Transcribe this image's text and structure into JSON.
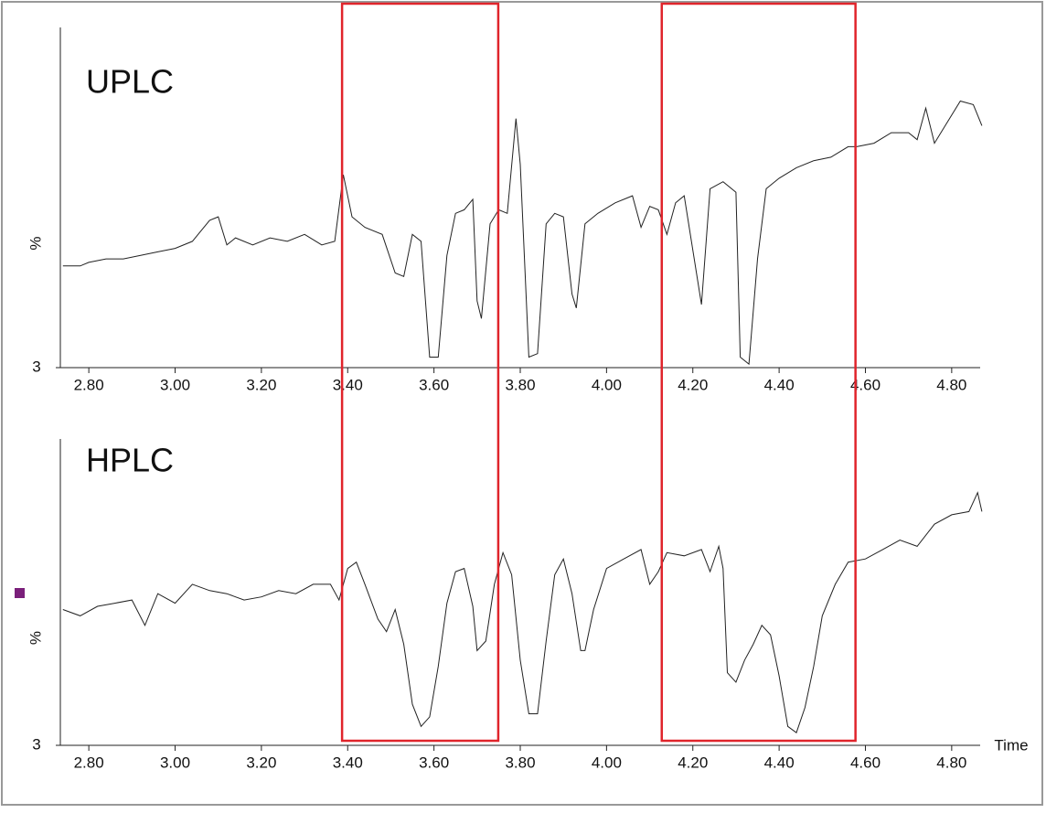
{
  "chart_data": [
    {
      "type": "line",
      "title": "UPLC",
      "ylabel": "%",
      "xlim": [
        2.734,
        4.866
      ],
      "xticks": [
        {
          "value": 2.8,
          "label": "2.80"
        },
        {
          "value": 3.0,
          "label": "3.00"
        },
        {
          "value": 3.2,
          "label": "3.20"
        },
        {
          "value": 3.4,
          "label": "3.40"
        },
        {
          "value": 3.6,
          "label": "3.60"
        },
        {
          "value": 3.8,
          "label": "3.80"
        },
        {
          "value": 4.0,
          "label": "4.00"
        },
        {
          "value": 4.2,
          "label": "4.20"
        },
        {
          "value": 4.4,
          "label": "4.40"
        },
        {
          "value": 4.6,
          "label": "4.60"
        },
        {
          "value": 4.8,
          "label": "4.80"
        }
      ],
      "ylim": [
        3,
        100
      ],
      "yticks": [
        3
      ],
      "x": [
        2.74,
        2.78,
        2.8,
        2.84,
        2.88,
        2.92,
        2.96,
        3.0,
        3.04,
        3.08,
        3.1,
        3.12,
        3.14,
        3.18,
        3.22,
        3.26,
        3.3,
        3.34,
        3.37,
        3.39,
        3.41,
        3.44,
        3.48,
        3.51,
        3.53,
        3.55,
        3.57,
        3.59,
        3.61,
        3.63,
        3.65,
        3.67,
        3.69,
        3.7,
        3.71,
        3.73,
        3.75,
        3.77,
        3.79,
        3.8,
        3.82,
        3.84,
        3.86,
        3.88,
        3.9,
        3.92,
        3.93,
        3.95,
        3.98,
        4.02,
        4.06,
        4.08,
        4.1,
        4.12,
        4.14,
        4.16,
        4.18,
        4.22,
        4.24,
        4.27,
        4.3,
        4.31,
        4.33,
        4.35,
        4.37,
        4.4,
        4.44,
        4.48,
        4.52,
        4.56,
        4.58,
        4.62,
        4.66,
        4.7,
        4.72,
        4.74,
        4.76,
        4.78,
        4.82,
        4.85,
        4.87
      ],
      "series": [
        {
          "color": "#222222",
          "values": [
            32,
            32,
            33,
            34,
            34,
            35,
            36,
            37,
            39,
            45,
            46,
            38,
            40,
            38,
            40,
            39,
            41,
            38,
            39,
            58,
            46,
            43,
            41,
            30,
            29,
            41,
            39,
            6,
            6,
            35,
            47,
            48,
            51,
            22,
            17,
            44,
            48,
            47,
            74,
            61,
            6,
            7,
            44,
            47,
            46,
            24,
            20,
            44,
            47,
            50,
            52,
            43,
            49,
            48,
            41,
            50,
            52,
            21,
            54,
            56,
            53,
            6,
            4,
            34,
            54,
            57,
            60,
            62,
            63,
            66,
            66,
            67,
            70,
            70,
            68,
            77,
            67,
            71,
            79,
            78,
            72
          ]
        }
      ]
    },
    {
      "type": "line",
      "title": "HPLC",
      "ylabel": "%",
      "xlabel": "Time",
      "xlim": [
        2.734,
        4.866
      ],
      "xticks": [
        {
          "value": 2.8,
          "label": "2.80"
        },
        {
          "value": 3.0,
          "label": "3.00"
        },
        {
          "value": 3.2,
          "label": "3.20"
        },
        {
          "value": 3.4,
          "label": "3.40"
        },
        {
          "value": 3.6,
          "label": "3.60"
        },
        {
          "value": 3.8,
          "label": "3.80"
        },
        {
          "value": 4.0,
          "label": "4.00"
        },
        {
          "value": 4.2,
          "label": "4.20"
        },
        {
          "value": 4.4,
          "label": "4.40"
        },
        {
          "value": 4.6,
          "label": "4.60"
        },
        {
          "value": 4.8,
          "label": "4.80"
        }
      ],
      "ylim": [
        3,
        100
      ],
      "yticks": [
        3
      ],
      "x": [
        2.74,
        2.78,
        2.82,
        2.86,
        2.9,
        2.93,
        2.96,
        3.0,
        3.04,
        3.08,
        3.12,
        3.16,
        3.2,
        3.24,
        3.28,
        3.32,
        3.36,
        3.38,
        3.4,
        3.42,
        3.44,
        3.47,
        3.49,
        3.51,
        3.53,
        3.55,
        3.57,
        3.59,
        3.61,
        3.63,
        3.65,
        3.67,
        3.69,
        3.7,
        3.72,
        3.74,
        3.76,
        3.78,
        3.8,
        3.82,
        3.84,
        3.86,
        3.88,
        3.9,
        3.92,
        3.94,
        3.95,
        3.97,
        4.0,
        4.04,
        4.08,
        4.1,
        4.12,
        4.14,
        4.18,
        4.22,
        4.24,
        4.26,
        4.27,
        4.28,
        4.3,
        4.32,
        4.34,
        4.36,
        4.38,
        4.4,
        4.42,
        4.44,
        4.46,
        4.48,
        4.5,
        4.53,
        4.56,
        4.6,
        4.64,
        4.68,
        4.72,
        4.76,
        4.8,
        4.84,
        4.86,
        4.87
      ],
      "series": [
        {
          "color": "#222222",
          "values": [
            46,
            44,
            47,
            48,
            49,
            41,
            51,
            48,
            54,
            52,
            51,
            49,
            50,
            52,
            51,
            54,
            54,
            49,
            59,
            61,
            54,
            43,
            39,
            46,
            35,
            16,
            9,
            12,
            28,
            48,
            58,
            59,
            47,
            33,
            36,
            54,
            64,
            57,
            30,
            13,
            13,
            36,
            57,
            62,
            51,
            33,
            33,
            46,
            59,
            62,
            65,
            54,
            58,
            64,
            63,
            65,
            58,
            66,
            59,
            26,
            23,
            30,
            35,
            41,
            38,
            25,
            9,
            7,
            15,
            28,
            44,
            54,
            61,
            62,
            65,
            68,
            66,
            73,
            76,
            77,
            83,
            77
          ]
        }
      ]
    }
  ],
  "highlight_boxes": [
    [
      3.387,
      3.749
    ],
    [
      4.128,
      4.577
    ]
  ],
  "highlight_color": "#e0242b"
}
